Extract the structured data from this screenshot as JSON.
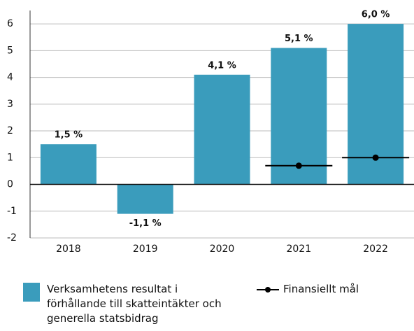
{
  "chart_data": {
    "type": "bar",
    "categories": [
      "2018",
      "2019",
      "2020",
      "2021",
      "2022"
    ],
    "series": [
      {
        "name": "Verksamhetens resultat i förhållande till skatteintäkter och generella statsbidrag",
        "color": "#3a9cbc",
        "values": [
          1.5,
          -1.1,
          4.1,
          5.1,
          6.0
        ],
        "value_labels": [
          "1,5 %",
          "-1,1 %",
          "4,1 %",
          "5,1 %",
          "6,0 %"
        ]
      },
      {
        "name": "Finansiellt mål",
        "type": "target",
        "color": "#000000",
        "values": [
          null,
          null,
          null,
          0.7,
          1.0
        ]
      }
    ],
    "ylim": [
      -2,
      6.5
    ],
    "yticks": [
      -2,
      -1,
      0,
      1,
      2,
      3,
      4,
      5,
      6
    ],
    "grid": true
  }
}
